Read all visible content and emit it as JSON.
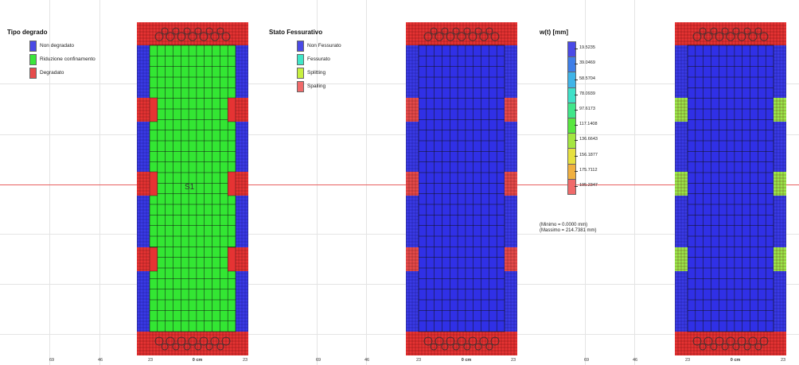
{
  "colors": {
    "blue": "#3a3ae6",
    "green": "#33e633",
    "red": "#e63333",
    "cyan": "#40e0d0",
    "yellowgreen": "#b8f040",
    "salmon": "#f06a6a"
  },
  "panel1": {
    "legend_title": "Tipo degrado",
    "items": [
      {
        "label": "Non degradato",
        "color": "#4a4ae6"
      },
      {
        "label": "Riduzione confinamento",
        "color": "#3ae63a"
      },
      {
        "label": "Degradato",
        "color": "#e64a4a"
      }
    ],
    "section_label": "S1",
    "ticks": [
      "69",
      "46",
      "23",
      "0 cm",
      "23"
    ]
  },
  "panel2": {
    "legend_title": "Stato Fessurativo",
    "items": [
      {
        "label": "Non Fessurato",
        "color": "#4a4ae6"
      },
      {
        "label": "Fessurato",
        "color": "#40e6c8"
      },
      {
        "label": "Splitting",
        "color": "#c8f040"
      },
      {
        "label": "Spalling",
        "color": "#f06a6a"
      }
    ],
    "ticks": [
      "69",
      "46",
      "23",
      "0 cm",
      "23"
    ]
  },
  "panel3": {
    "legend_title": "w(t) [mm]",
    "scale_values": [
      "19.5235",
      "39.0469",
      "58.5704",
      "78.0939",
      "97.6173",
      "117.1408",
      "136.6643",
      "156.1877",
      "175.7112",
      "195.2347"
    ],
    "scale_colors": [
      "#4a4ae6",
      "#3f7ee8",
      "#3fb4e8",
      "#3fe0c8",
      "#40e68a",
      "#58e640",
      "#a4e640",
      "#e6e040",
      "#f0b040",
      "#f06a6a"
    ],
    "min_text": "(Minimo  = 0.0000 mm)",
    "max_text": "(Massimo = 214.7381 mm)",
    "ticks": [
      "69",
      "46",
      "23",
      "0 cm",
      "23"
    ]
  }
}
